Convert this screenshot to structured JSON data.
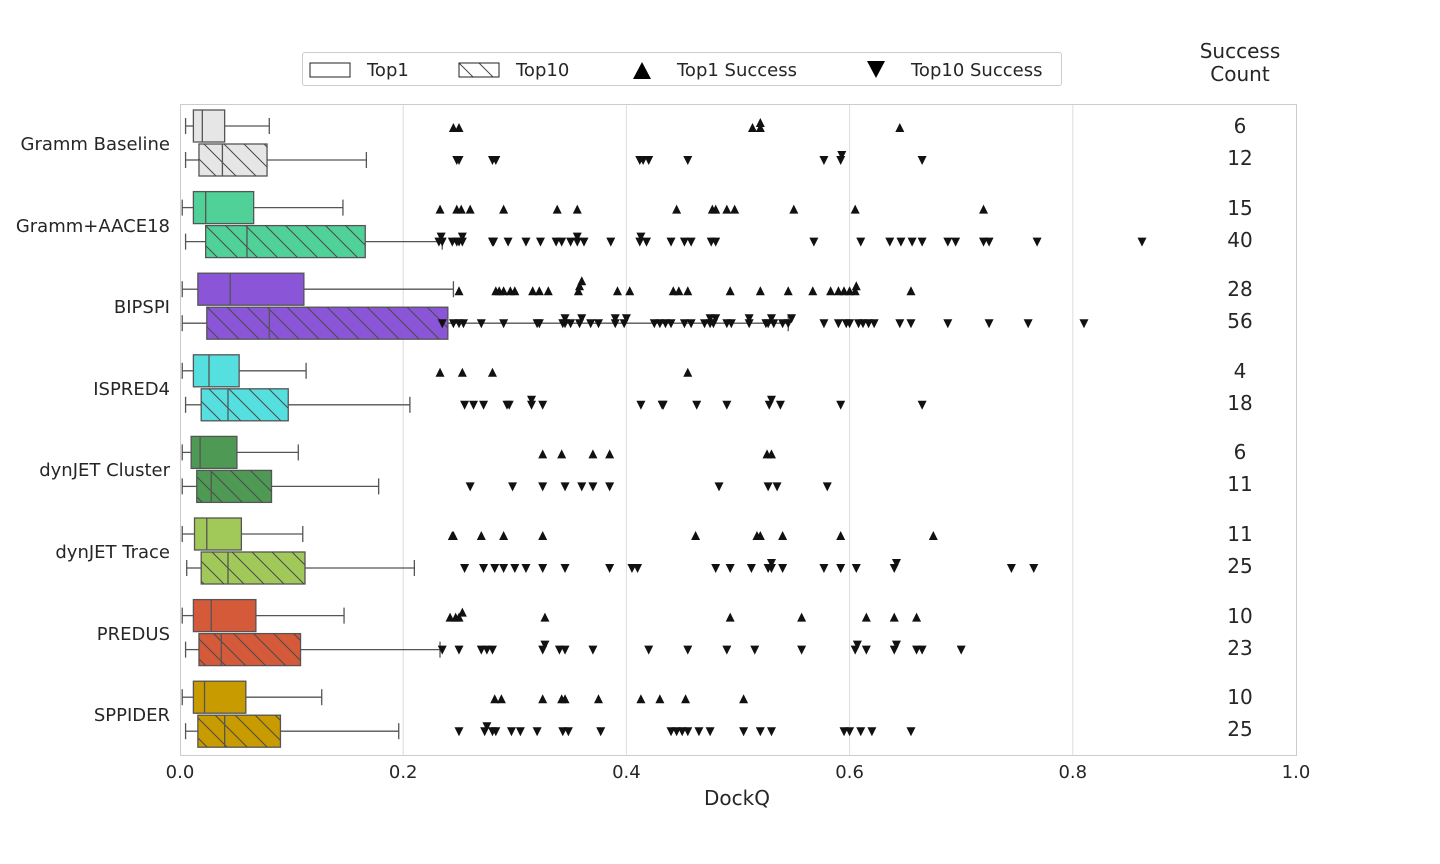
{
  "legend": {
    "top1": "Top1",
    "top10": "Top10",
    "top1_success": "Top1 Success",
    "top10_success": "Top10 Success"
  },
  "success_count_header": [
    "Success",
    "Count"
  ],
  "chart_data": {
    "type": "box",
    "xlabel": "DockQ",
    "xlim": [
      0.0,
      1.0
    ],
    "xticks": [
      "0.0",
      "0.2",
      "0.4",
      "0.6",
      "0.8",
      "1.0"
    ],
    "grid": true,
    "orientation": "horizontal",
    "methods": [
      {
        "name": "Gramm Baseline",
        "color": "#e6e6e6",
        "top1": {
          "whislo": 0.005,
          "q1": 0.012,
          "median": 0.02,
          "q3": 0.04,
          "whishi": 0.08
        },
        "top10": {
          "whislo": 0.005,
          "q1": 0.017,
          "median": 0.038,
          "q3": 0.078,
          "whishi": 0.167
        },
        "top1_success": [
          0.245,
          0.25,
          0.513,
          0.52,
          0.52,
          0.645
        ],
        "top10_success": [
          0.248,
          0.25,
          0.28,
          0.283,
          0.412,
          0.415,
          0.42,
          0.455,
          0.577,
          0.592,
          0.593,
          0.665
        ],
        "top1_count": "6",
        "top10_count": "12"
      },
      {
        "name": "Gramm+AACE18",
        "color": "#4fd197",
        "top1": {
          "whislo": 0.002,
          "q1": 0.012,
          "median": 0.023,
          "q3": 0.066,
          "whishi": 0.146
        },
        "top10": {
          "whislo": 0.005,
          "q1": 0.023,
          "median": 0.06,
          "q3": 0.166,
          "whishi": 0.235
        },
        "top1_success": [
          0.233,
          0.248,
          0.252,
          0.26,
          0.29,
          0.338,
          0.356,
          0.445,
          0.477,
          0.48,
          0.49,
          0.497,
          0.55,
          0.605,
          0.72
        ],
        "top10_success": [
          0.232,
          0.234,
          0.235,
          0.244,
          0.248,
          0.25,
          0.253,
          0.28,
          0.281,
          0.294,
          0.31,
          0.323,
          0.337,
          0.342,
          0.35,
          0.356,
          0.362,
          0.386,
          0.412,
          0.413,
          0.418,
          0.44,
          0.452,
          0.458,
          0.476,
          0.48,
          0.568,
          0.61,
          0.636,
          0.646,
          0.656,
          0.665,
          0.688,
          0.695,
          0.72,
          0.725,
          0.768,
          0.862,
          0.356,
          0.253
        ],
        "top1_count": "15",
        "top10_count": "40"
      },
      {
        "name": "BIPSPI",
        "color": "#8a55d6",
        "top1": {
          "whislo": 0.002,
          "q1": 0.016,
          "median": 0.045,
          "q3": 0.111,
          "whishi": 0.245
        },
        "top10": {
          "whislo": 0.002,
          "q1": 0.024,
          "median": 0.08,
          "q3": 0.24,
          "whishi": 0.545
        },
        "top1_success": [
          0.25,
          0.283,
          0.286,
          0.29,
          0.296,
          0.3,
          0.316,
          0.322,
          0.33,
          0.357,
          0.358,
          0.36,
          0.392,
          0.403,
          0.442,
          0.447,
          0.455,
          0.493,
          0.52,
          0.545,
          0.567,
          0.583,
          0.59,
          0.595,
          0.6,
          0.605,
          0.606,
          0.655
        ],
        "top10_success": [
          0.235,
          0.245,
          0.25,
          0.254,
          0.27,
          0.29,
          0.32,
          0.322,
          0.343,
          0.345,
          0.35,
          0.358,
          0.36,
          0.368,
          0.375,
          0.39,
          0.398,
          0.4,
          0.425,
          0.43,
          0.435,
          0.44,
          0.452,
          0.458,
          0.47,
          0.475,
          0.478,
          0.48,
          0.49,
          0.494,
          0.51,
          0.527,
          0.532,
          0.54,
          0.545,
          0.577,
          0.59,
          0.597,
          0.6,
          0.608,
          0.612,
          0.617,
          0.622,
          0.645,
          0.655,
          0.688,
          0.725,
          0.76,
          0.81,
          0.345,
          0.51,
          0.53,
          0.475,
          0.548,
          0.525,
          0.39
        ],
        "top1_count": "28",
        "top10_count": "56"
      },
      {
        "name": "ISPRED4",
        "color": "#55dfdf",
        "top1": {
          "whislo": 0.002,
          "q1": 0.012,
          "median": 0.026,
          "q3": 0.053,
          "whishi": 0.113
        },
        "top10": {
          "whislo": 0.005,
          "q1": 0.019,
          "median": 0.043,
          "q3": 0.097,
          "whishi": 0.206
        },
        "top1_success": [
          0.233,
          0.253,
          0.28,
          0.455
        ],
        "top10_success": [
          0.255,
          0.263,
          0.272,
          0.293,
          0.295,
          0.315,
          0.325,
          0.413,
          0.432,
          0.433,
          0.463,
          0.49,
          0.528,
          0.53,
          0.538,
          0.592,
          0.665,
          0.315
        ],
        "top1_count": "4",
        "top10_count": "18"
      },
      {
        "name": "dynJET Cluster",
        "color": "#4e9a55",
        "top1": {
          "whislo": 0.002,
          "q1": 0.01,
          "median": 0.018,
          "q3": 0.051,
          "whishi": 0.106
        },
        "top10": {
          "whislo": 0.002,
          "q1": 0.015,
          "median": 0.028,
          "q3": 0.082,
          "whishi": 0.178
        },
        "top1_success": [
          0.325,
          0.342,
          0.37,
          0.385,
          0.526,
          0.53
        ],
        "top10_success": [
          0.26,
          0.298,
          0.325,
          0.345,
          0.36,
          0.37,
          0.385,
          0.483,
          0.527,
          0.535,
          0.58
        ],
        "top1_count": "6",
        "top10_count": "11"
      },
      {
        "name": "dynJET Trace",
        "color": "#a1c95a",
        "top1": {
          "whislo": 0.002,
          "q1": 0.013,
          "median": 0.024,
          "q3": 0.055,
          "whishi": 0.11
        },
        "top10": {
          "whislo": 0.006,
          "q1": 0.019,
          "median": 0.043,
          "q3": 0.112,
          "whishi": 0.21
        },
        "top1_success": [
          0.244,
          0.245,
          0.27,
          0.29,
          0.325,
          0.462,
          0.517,
          0.52,
          0.54,
          0.592,
          0.675
        ],
        "top10_success": [
          0.255,
          0.272,
          0.282,
          0.29,
          0.3,
          0.31,
          0.325,
          0.345,
          0.385,
          0.405,
          0.41,
          0.48,
          0.493,
          0.512,
          0.527,
          0.53,
          0.54,
          0.577,
          0.592,
          0.606,
          0.64,
          0.642,
          0.745,
          0.765,
          0.53
        ],
        "top1_count": "11",
        "top10_count": "25"
      },
      {
        "name": "PREDUS",
        "color": "#d45a3a",
        "top1": {
          "whislo": 0.002,
          "q1": 0.012,
          "median": 0.028,
          "q3": 0.068,
          "whishi": 0.147
        },
        "top10": {
          "whislo": 0.005,
          "q1": 0.017,
          "median": 0.037,
          "q3": 0.108,
          "whishi": 0.233
        },
        "top1_success": [
          0.242,
          0.247,
          0.25,
          0.253,
          0.327,
          0.493,
          0.557,
          0.615,
          0.64,
          0.66
        ],
        "top10_success": [
          0.235,
          0.25,
          0.27,
          0.275,
          0.28,
          0.325,
          0.327,
          0.34,
          0.345,
          0.37,
          0.42,
          0.455,
          0.49,
          0.515,
          0.557,
          0.605,
          0.607,
          0.615,
          0.64,
          0.642,
          0.66,
          0.665,
          0.7
        ],
        "top1_count": "10",
        "top10_count": "23"
      },
      {
        "name": "SPPIDER",
        "color": "#c89b00",
        "top1": {
          "whislo": 0.002,
          "q1": 0.012,
          "median": 0.022,
          "q3": 0.059,
          "whishi": 0.127
        },
        "top10": {
          "whislo": 0.005,
          "q1": 0.016,
          "median": 0.04,
          "q3": 0.09,
          "whishi": 0.196
        },
        "top1_success": [
          0.282,
          0.288,
          0.325,
          0.342,
          0.345,
          0.375,
          0.413,
          0.43,
          0.453,
          0.505
        ],
        "top10_success": [
          0.25,
          0.273,
          0.275,
          0.28,
          0.283,
          0.297,
          0.305,
          0.32,
          0.343,
          0.348,
          0.377,
          0.44,
          0.445,
          0.45,
          0.455,
          0.465,
          0.475,
          0.505,
          0.52,
          0.53,
          0.595,
          0.6,
          0.61,
          0.62,
          0.655
        ],
        "top1_count": "10",
        "top10_count": "25"
      }
    ]
  }
}
